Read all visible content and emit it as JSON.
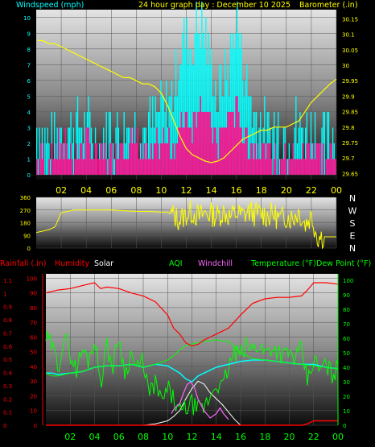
{
  "colors": {
    "background": "#000000",
    "cyan": "#00ffff",
    "yellow": "#ffff00",
    "magenta": "#ff1493",
    "red": "#ff0000",
    "green": "#00ff00",
    "windchill": "#ff66ff",
    "white": "#ffffff"
  },
  "chart_data": [
    {
      "type": "bar",
      "title": "24 hour graph day : December 10 2025",
      "ylabel": "Windspeed (mph)",
      "y2label": "Barometer (.in)",
      "x_ticks": [
        "02",
        "04",
        "06",
        "08",
        "10",
        "12",
        "14",
        "16",
        "18",
        "20",
        "22",
        "00"
      ],
      "ylim": [
        0,
        10.5
      ],
      "y_ticks": [
        "0",
        "1",
        "2",
        "3",
        "4",
        "5",
        "6",
        "7",
        "8",
        "9",
        "10"
      ],
      "y2lim": [
        29.63,
        30.18
      ],
      "y2_ticks": [
        "29.65",
        "29.7",
        "29.75",
        "29.8",
        "29.85",
        "29.9",
        "29.95",
        "30",
        "30.05",
        "30.1",
        "30.15"
      ],
      "series": [
        {
          "hours": [
            0.1,
            0.5,
            1,
            1.5,
            2,
            2.5,
            3,
            3.5,
            4,
            4.5,
            5,
            5.5,
            6,
            6.5,
            7,
            7.5,
            8,
            8.5,
            9,
            9.5,
            10,
            10.5,
            11,
            11.5,
            12,
            12.5,
            13,
            13.5,
            14,
            14.5,
            15,
            15.5,
            16,
            16.5,
            17,
            17.5,
            18,
            18.5,
            19,
            19.5,
            20,
            20.5,
            21,
            21.5,
            22,
            22.5,
            23,
            23.5,
            24
          ],
          "values": [
            30.08,
            30.08,
            30.07,
            30.07,
            30.06,
            30.05,
            30.04,
            30.03,
            30.02,
            30.01,
            30.0,
            29.99,
            29.98,
            29.97,
            29.96,
            29.96,
            29.95,
            29.94,
            29.94,
            29.93,
            29.91,
            29.87,
            29.82,
            29.77,
            29.73,
            29.71,
            29.7,
            29.69,
            29.685,
            29.69,
            29.7,
            29.72,
            29.74,
            29.76,
            29.77,
            29.78,
            29.79,
            29.79,
            29.8,
            29.8,
            29.8,
            29.81,
            29.82,
            29.85,
            29.88,
            29.9,
            29.92,
            29.94,
            29.955
          ]
        },
        {
          "hours": [
            0,
            1,
            2,
            3,
            4,
            5,
            6,
            7,
            8,
            9,
            10,
            11,
            11.5,
            12,
            12.5,
            13,
            13.5,
            14,
            14.5,
            15,
            15.5,
            16,
            17,
            18,
            19,
            20,
            21,
            22,
            23,
            24
          ],
          "values": [
            1,
            1,
            2,
            1,
            2,
            1,
            1,
            2,
            2,
            1,
            2,
            2,
            3,
            4,
            3,
            5,
            4,
            3,
            2,
            3,
            4,
            4,
            2,
            2,
            1,
            1,
            1,
            2,
            1,
            1
          ]
        },
        {
          "hours": [
            0,
            1,
            2,
            3,
            4,
            5,
            6,
            7,
            8,
            9,
            10,
            11,
            11.5,
            12,
            12.5,
            13,
            13.5,
            14,
            14.5,
            15,
            15.5,
            16,
            17,
            18,
            19,
            20,
            21,
            22,
            23,
            24
          ],
          "values": [
            3,
            2,
            3,
            3,
            3,
            2,
            3,
            3,
            3,
            3,
            4,
            5,
            8,
            9,
            8,
            10,
            9,
            7,
            5,
            6,
            7,
            10,
            5,
            3,
            3,
            3,
            3,
            3,
            2,
            3
          ]
        }
      ]
    },
    {
      "type": "line",
      "right_labels": [
        "N",
        "W",
        "S",
        "E",
        "N"
      ],
      "ylim": [
        0,
        360
      ],
      "y_ticks": [
        "0",
        "90",
        "180",
        "270",
        "360"
      ],
      "series": [
        {
          "hours": [
            0,
            0.5,
            1,
            1.5,
            2,
            3,
            4,
            5,
            6,
            7,
            8,
            9,
            10,
            10.5,
            11,
            11.5,
            12,
            12.5,
            13,
            13.5,
            14,
            14.5,
            15,
            15.5,
            16,
            16.5,
            17,
            17.5,
            18,
            18.5,
            19,
            19.5,
            20,
            20.5,
            21,
            21.5,
            22,
            22.5,
            23,
            23.5,
            24
          ],
          "values": [
            110,
            120,
            130,
            150,
            250,
            270,
            270,
            270,
            270,
            265,
            260,
            260,
            255,
            255,
            230,
            200,
            240,
            260,
            220,
            250,
            240,
            230,
            260,
            220,
            250,
            230,
            260,
            240,
            250,
            230,
            240,
            200,
            230,
            210,
            260,
            170,
            230,
            80,
            80,
            80,
            80
          ]
        }
      ]
    },
    {
      "type": "line",
      "legend": [
        "Rainfall (.in)",
        "Humidity",
        "Solar",
        "AQI",
        "Windchill",
        "Temperature (°F)",
        "Dew Point (°F)"
      ],
      "x_ticks": [
        "02",
        "04",
        "06",
        "08",
        "10",
        "12",
        "14",
        "16",
        "18",
        "20",
        "22",
        "00"
      ],
      "rain_ticks": [
        "0",
        "0.1",
        "0.2",
        "0.3",
        "0.4",
        "0.5",
        "0.6",
        "0.7",
        "0.8",
        "0.9",
        "1",
        "1.1"
      ],
      "pct_ticks": [
        "0",
        "10",
        "20",
        "30",
        "40",
        "50",
        "60",
        "70",
        "80",
        "90",
        "100"
      ],
      "temp_ticks": [
        "0",
        "10",
        "20",
        "30",
        "40",
        "50",
        "60",
        "70",
        "80",
        "90",
        "100"
      ],
      "ylim_pct": [
        0,
        103
      ],
      "ylim_temp": [
        0,
        100
      ],
      "series": [
        {
          "hours": [
            0,
            1,
            2,
            3,
            4,
            4.5,
            5,
            6,
            7,
            8,
            9,
            10,
            10.5,
            11,
            11.5,
            12,
            12.5,
            13,
            13.5,
            14,
            14.5,
            15,
            16,
            17,
            18,
            19,
            20,
            21,
            21.5,
            22,
            23,
            24
          ],
          "values": [
            90,
            92,
            93,
            95,
            97,
            93,
            94,
            93,
            90,
            88,
            84,
            75,
            66,
            62,
            56,
            54,
            55,
            58,
            60,
            62,
            64,
            66,
            75,
            83,
            86,
            87,
            87,
            88,
            92,
            97,
            97,
            96
          ]
        },
        {
          "hours": [
            0,
            0.5,
            1,
            1.5,
            2,
            3,
            4,
            5,
            6,
            7,
            8,
            9,
            10,
            10.5,
            11,
            11.5,
            12,
            12.5,
            13,
            13.5,
            14,
            14.5,
            15,
            16,
            17,
            18,
            19,
            20,
            21,
            22,
            23,
            24
          ],
          "values": [
            36,
            34,
            34,
            35,
            36,
            37,
            40,
            41,
            41,
            42,
            40,
            42,
            45,
            48,
            52,
            55,
            56,
            57,
            58,
            58,
            59,
            58,
            58,
            50,
            46,
            45,
            44,
            43,
            42,
            41,
            40,
            39
          ]
        },
        {
          "hours": [
            0,
            0.5,
            1,
            2,
            3,
            4,
            5,
            6,
            7,
            8,
            9,
            10,
            11,
            11.5,
            12,
            12.5,
            13,
            14,
            15,
            16,
            17,
            18,
            19,
            20,
            21,
            22,
            23,
            24
          ],
          "values": [
            36,
            36,
            35,
            36,
            37,
            40,
            41,
            41,
            42,
            40,
            42,
            41,
            36,
            32,
            30,
            34,
            36,
            40,
            42,
            44,
            45,
            45,
            44,
            43,
            42,
            42,
            40,
            39
          ]
        },
        {
          "hours": [
            0,
            0.5,
            1,
            1.5,
            2,
            2.5,
            3,
            3.5,
            4,
            4.5,
            5,
            5.5,
            6,
            6.5,
            7,
            7.5,
            8,
            8.5,
            9,
            9.5,
            10,
            10.5,
            11,
            11.5,
            12,
            12.5,
            13,
            13.5,
            14,
            14.5,
            15,
            15.5,
            16,
            16.5,
            17,
            17.5,
            18,
            18.5,
            19,
            19.5,
            20,
            20.5,
            21,
            21.5,
            22,
            22.5,
            23,
            23.5,
            24
          ],
          "values": [
            60,
            55,
            40,
            62,
            50,
            38,
            52,
            45,
            60,
            30,
            55,
            40,
            62,
            35,
            50,
            38,
            45,
            20,
            30,
            15,
            25,
            18,
            8,
            12,
            15,
            10,
            12,
            20,
            30,
            25,
            40,
            50,
            48,
            55,
            52,
            56,
            50,
            54,
            52,
            48,
            50,
            46,
            52,
            30,
            45,
            38,
            42,
            35,
            40
          ]
        },
        {
          "hours": [
            10.3,
            10.6,
            11,
            11.3,
            11.6,
            11.9,
            12.2,
            12.5,
            13,
            13.5,
            14,
            14.3,
            14.6,
            15
          ],
          "values": [
            8,
            12,
            15,
            22,
            28,
            30,
            26,
            18,
            10,
            5,
            8,
            12,
            8,
            4
          ]
        },
        {
          "hours": [
            0,
            1,
            2,
            3,
            4,
            5,
            6,
            7,
            8,
            9,
            10,
            10.5,
            11,
            11.5,
            12,
            12.5,
            13,
            13.5,
            14,
            14.5,
            15,
            15.5,
            16
          ],
          "values": [
            0,
            0,
            0,
            0,
            0,
            0,
            0,
            0,
            0,
            1,
            3,
            6,
            10,
            18,
            25,
            30,
            28,
            22,
            18,
            14,
            9,
            4,
            0
          ]
        },
        {
          "hours": [
            0,
            18,
            19,
            20,
            21,
            21.5,
            22,
            23,
            24
          ],
          "values": [
            0,
            0,
            0,
            0,
            0,
            1,
            3,
            3,
            3
          ]
        }
      ]
    }
  ]
}
